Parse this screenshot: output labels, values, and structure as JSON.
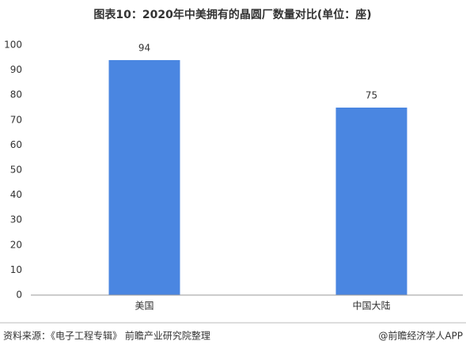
{
  "chart_data": {
    "type": "bar",
    "title": "图表10：2020年中美拥有的晶圆厂数量对比(单位：座)",
    "categories": [
      "美国",
      "中国大陆"
    ],
    "values": [
      94,
      75
    ],
    "color": "#4a86e1",
    "ylim": [
      0,
      100
    ],
    "yticks": [
      0,
      10,
      20,
      30,
      40,
      50,
      60,
      70,
      80,
      90,
      100
    ],
    "grid": false
  },
  "footer": {
    "source": "资料来源：《电子工程专辑》 前瞻产业研究院整理",
    "brand": "@前瞻经济学人APP"
  }
}
